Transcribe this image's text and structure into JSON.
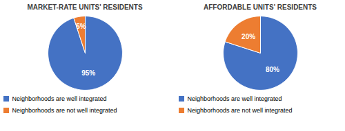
{
  "chart_data": [
    {
      "type": "pie",
      "title": "MARKET-RATE UNITS' RESIDENTS",
      "categories": [
        "Neighborhoods are well integrated",
        "Neighborhoods are not well integrated"
      ],
      "values": [
        95,
        5
      ],
      "value_labels": [
        "95%",
        "5%"
      ],
      "colors": [
        "#4472C4",
        "#ED7D31"
      ],
      "data_labels": true,
      "legend": "lower left"
    },
    {
      "type": "pie",
      "title": "AFFORDABLE UNITS' RESIDENTS",
      "categories": [
        "Neighborhoods are well integrated",
        "Neighborhoods are not well integrated"
      ],
      "values": [
        80,
        20
      ],
      "value_labels": [
        "80%",
        "20%"
      ],
      "colors": [
        "#4472C4",
        "#ED7D31"
      ],
      "data_labels": true,
      "legend": "lower left"
    }
  ]
}
